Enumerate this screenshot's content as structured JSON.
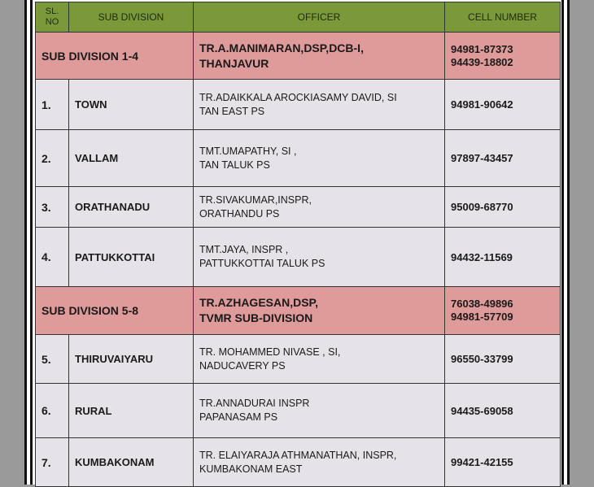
{
  "header": {
    "sl_no": "SL. NO",
    "sub_division": "SUB DIVISION",
    "officer": "OFFICER",
    "cell_number": "CELL NUMBER"
  },
  "groups": [
    {
      "label": "SUB DIVISION  1-4",
      "officer_line1": "TR.A.MANIMARAN,DSP,DCB-I,",
      "officer_line2": "THANJAVUR",
      "cell1": "94981-87373",
      "cell2": "94439-18802"
    },
    {
      "label": "SUB DIVISION  5-8",
      "officer_line1": "TR.AZHAGESAN,DSP,",
      "officer_line2": "TVMR SUB-DIVISION",
      "cell1": "76038-49896",
      "cell2": "94981-57709"
    }
  ],
  "rows": [
    {
      "sl": "1.",
      "division": "TOWN",
      "officer_line1": "TR.ADAIKKALA AROCKIASAMY DAVID, SI",
      "officer_line2": "TAN EAST PS",
      "cell": "94981-90642"
    },
    {
      "sl": "2.",
      "division": "VALLAM",
      "officer_line1": "TMT.UMAPATHY, SI ,",
      "officer_line2": "TAN TALUK PS",
      "cell": "97897-43457"
    },
    {
      "sl": "3.",
      "division": "ORATHANADU",
      "officer_line1": "TR.SIVAKUMAR,INSPR,",
      "officer_line2": "ORATHANDU PS",
      "cell": "95009-68770"
    },
    {
      "sl": "4.",
      "division": "PATTUKKOTTAI",
      "officer_line1": "TMT.JAYA, INSPR ,",
      "officer_line2": "PATTUKKOTTAI TALUK PS",
      "cell": "94432-11569"
    },
    {
      "sl": "5.",
      "division": "THIRUVAIYARU",
      "officer_line1": "TR. MOHAMMED NIVASE , SI,",
      "officer_line2": "NADUCAVERY PS",
      "cell": "96550-33799"
    },
    {
      "sl": "6.",
      "division": "RURAL",
      "officer_line1": "TR.ANNADURAI INSPR",
      "officer_line2": "PAPANASAM  PS",
      "cell": "94435-69058"
    },
    {
      "sl": "7.",
      "division": "KUMBAKONAM",
      "officer_line1": "TR. ELAIYARAJA ATHMANATHAN, INSPR,",
      "officer_line2": "KUMBAKONAM EAST",
      "cell": "99421-42155"
    }
  ]
}
